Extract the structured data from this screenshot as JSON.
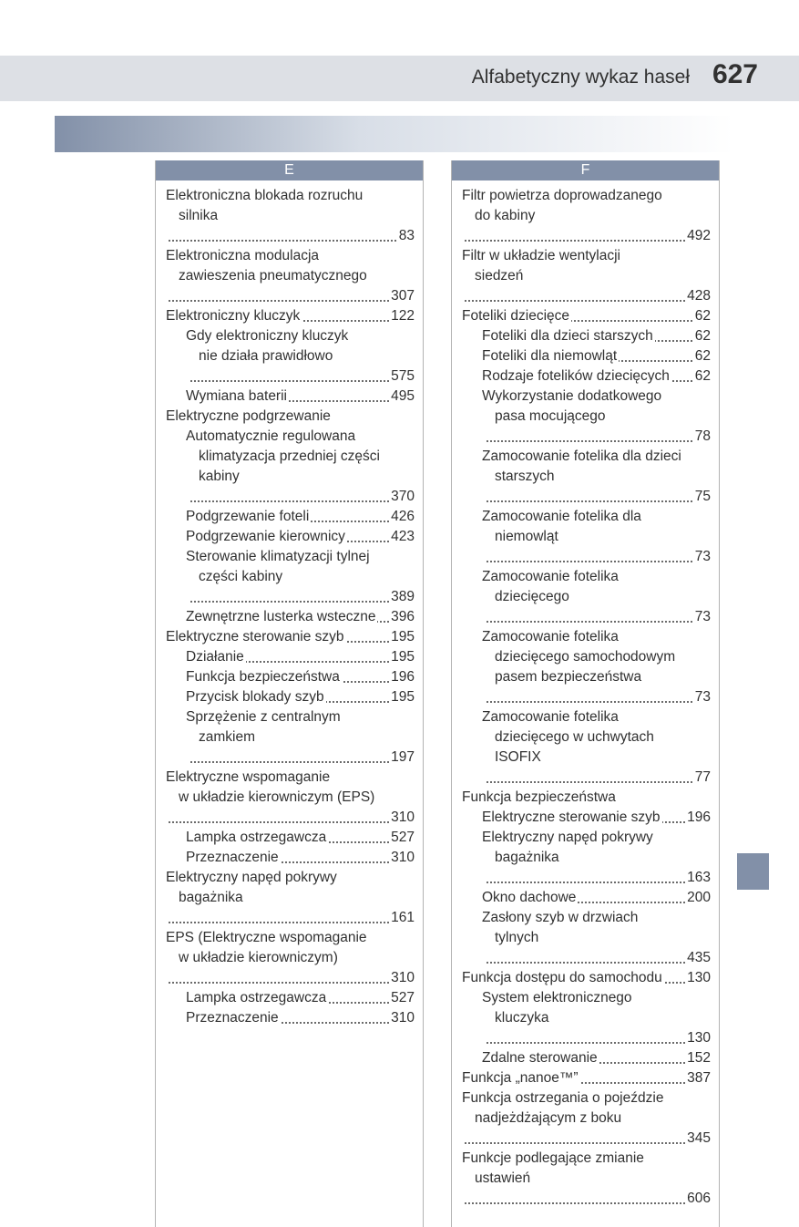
{
  "header": {
    "title": "Alfabetyczny wykaz haseł",
    "page_number": "627"
  },
  "columns": [
    {
      "letter": "E",
      "entries": [
        {
          "level": 0,
          "lines": [
            "Elektroniczna blokada rozruchu",
            "silnika"
          ],
          "page": "83"
        },
        {
          "level": 0,
          "lines": [
            "Elektroniczna modulacja",
            "zawieszenia pneumatycznego"
          ],
          "page": "307"
        },
        {
          "level": 0,
          "lines": [
            "Elektroniczny kluczyk"
          ],
          "page": "122"
        },
        {
          "level": 1,
          "lines": [
            "Gdy elektroniczny kluczyk",
            "nie działa prawidłowo"
          ],
          "page": "575"
        },
        {
          "level": 1,
          "lines": [
            "Wymiana baterii"
          ],
          "page": "495"
        },
        {
          "level": 0,
          "lines": [
            "Elektryczne podgrzewanie"
          ],
          "page": ""
        },
        {
          "level": 1,
          "lines": [
            "Automatycznie regulowana",
            "klimatyzacja przedniej części",
            "kabiny"
          ],
          "page": "370"
        },
        {
          "level": 1,
          "lines": [
            "Podgrzewanie foteli"
          ],
          "page": "426"
        },
        {
          "level": 1,
          "lines": [
            "Podgrzewanie kierownicy"
          ],
          "page": "423"
        },
        {
          "level": 1,
          "lines": [
            "Sterowanie klimatyzacji tylnej",
            "części kabiny"
          ],
          "page": "389"
        },
        {
          "level": 1,
          "lines": [
            "Zewnętrzne lusterka wsteczne"
          ],
          "page": "396"
        },
        {
          "level": 0,
          "lines": [
            "Elektryczne sterowanie szyb"
          ],
          "page": "195"
        },
        {
          "level": 1,
          "lines": [
            "Działanie"
          ],
          "page": "195"
        },
        {
          "level": 1,
          "lines": [
            "Funkcja bezpieczeństwa"
          ],
          "page": "196"
        },
        {
          "level": 1,
          "lines": [
            "Przycisk blokady szyb"
          ],
          "page": "195"
        },
        {
          "level": 1,
          "lines": [
            "Sprzężenie z centralnym",
            "zamkiem"
          ],
          "page": "197"
        },
        {
          "level": 0,
          "lines": [
            "Elektryczne wspomaganie",
            "w układzie kierowniczym (EPS)"
          ],
          "page": "310"
        },
        {
          "level": 1,
          "lines": [
            "Lampka ostrzegawcza"
          ],
          "page": "527"
        },
        {
          "level": 1,
          "lines": [
            "Przeznaczenie"
          ],
          "page": "310"
        },
        {
          "level": 0,
          "lines": [
            "Elektryczny napęd pokrywy",
            "bagażnika"
          ],
          "page": "161"
        },
        {
          "level": 0,
          "lines": [
            "EPS (Elektryczne wspomaganie",
            "w układzie kierowniczym)"
          ],
          "page": "310"
        },
        {
          "level": 1,
          "lines": [
            "Lampka ostrzegawcza"
          ],
          "page": "527"
        },
        {
          "level": 1,
          "lines": [
            "Przeznaczenie"
          ],
          "page": "310"
        }
      ]
    },
    {
      "letter": "F",
      "entries": [
        {
          "level": 0,
          "lines": [
            "Filtr powietrza doprowadzanego",
            "do kabiny"
          ],
          "page": "492"
        },
        {
          "level": 0,
          "lines": [
            "Filtr w układzie wentylacji",
            "siedzeń"
          ],
          "page": "428"
        },
        {
          "level": 0,
          "lines": [
            "Foteliki dziecięce"
          ],
          "page": "62"
        },
        {
          "level": 1,
          "lines": [
            "Foteliki dla dzieci starszych"
          ],
          "page": "62"
        },
        {
          "level": 1,
          "lines": [
            "Foteliki dla niemowląt"
          ],
          "page": "62"
        },
        {
          "level": 1,
          "lines": [
            "Rodzaje fotelików dziecięcych"
          ],
          "page": "62"
        },
        {
          "level": 1,
          "lines": [
            "Wykorzystanie dodatkowego",
            "pasa mocującego"
          ],
          "page": "78"
        },
        {
          "level": 1,
          "lines": [
            "Zamocowanie fotelika dla dzieci",
            "starszych"
          ],
          "page": "75"
        },
        {
          "level": 1,
          "lines": [
            "Zamocowanie fotelika dla",
            "niemowląt"
          ],
          "page": "73"
        },
        {
          "level": 1,
          "lines": [
            "Zamocowanie fotelika",
            "dziecięcego"
          ],
          "page": "73"
        },
        {
          "level": 1,
          "lines": [
            "Zamocowanie fotelika",
            "dziecięcego samochodowym",
            "pasem bezpieczeństwa"
          ],
          "page": "73"
        },
        {
          "level": 1,
          "lines": [
            "Zamocowanie fotelika",
            "dziecięcego w uchwytach",
            "ISOFIX"
          ],
          "page": "77"
        },
        {
          "level": 0,
          "lines": [
            "Funkcja bezpieczeństwa"
          ],
          "page": ""
        },
        {
          "level": 1,
          "lines": [
            "Elektryczne sterowanie szyb"
          ],
          "page": "196"
        },
        {
          "level": 1,
          "lines": [
            "Elektryczny napęd pokrywy",
            "bagażnika"
          ],
          "page": "163"
        },
        {
          "level": 1,
          "lines": [
            "Okno dachowe"
          ],
          "page": "200"
        },
        {
          "level": 1,
          "lines": [
            "Zasłony szyb w drzwiach",
            "tylnych"
          ],
          "page": "435"
        },
        {
          "level": 0,
          "lines": [
            "Funkcja dostępu do samochodu"
          ],
          "page": "130"
        },
        {
          "level": 1,
          "lines": [
            "System elektronicznego",
            "kluczyka"
          ],
          "page": "130"
        },
        {
          "level": 1,
          "lines": [
            "Zdalne sterowanie"
          ],
          "page": "152"
        },
        {
          "level": 0,
          "lines": [
            "Funkcja „nanoe™”"
          ],
          "page": "387"
        },
        {
          "level": 0,
          "lines": [
            "Funkcja ostrzegania o pojeździe",
            "nadjeżdżającym z boku"
          ],
          "page": "345"
        },
        {
          "level": 0,
          "lines": [
            "Funkcje podlegające zmianie",
            "ustawień"
          ],
          "page": "606"
        }
      ]
    }
  ]
}
